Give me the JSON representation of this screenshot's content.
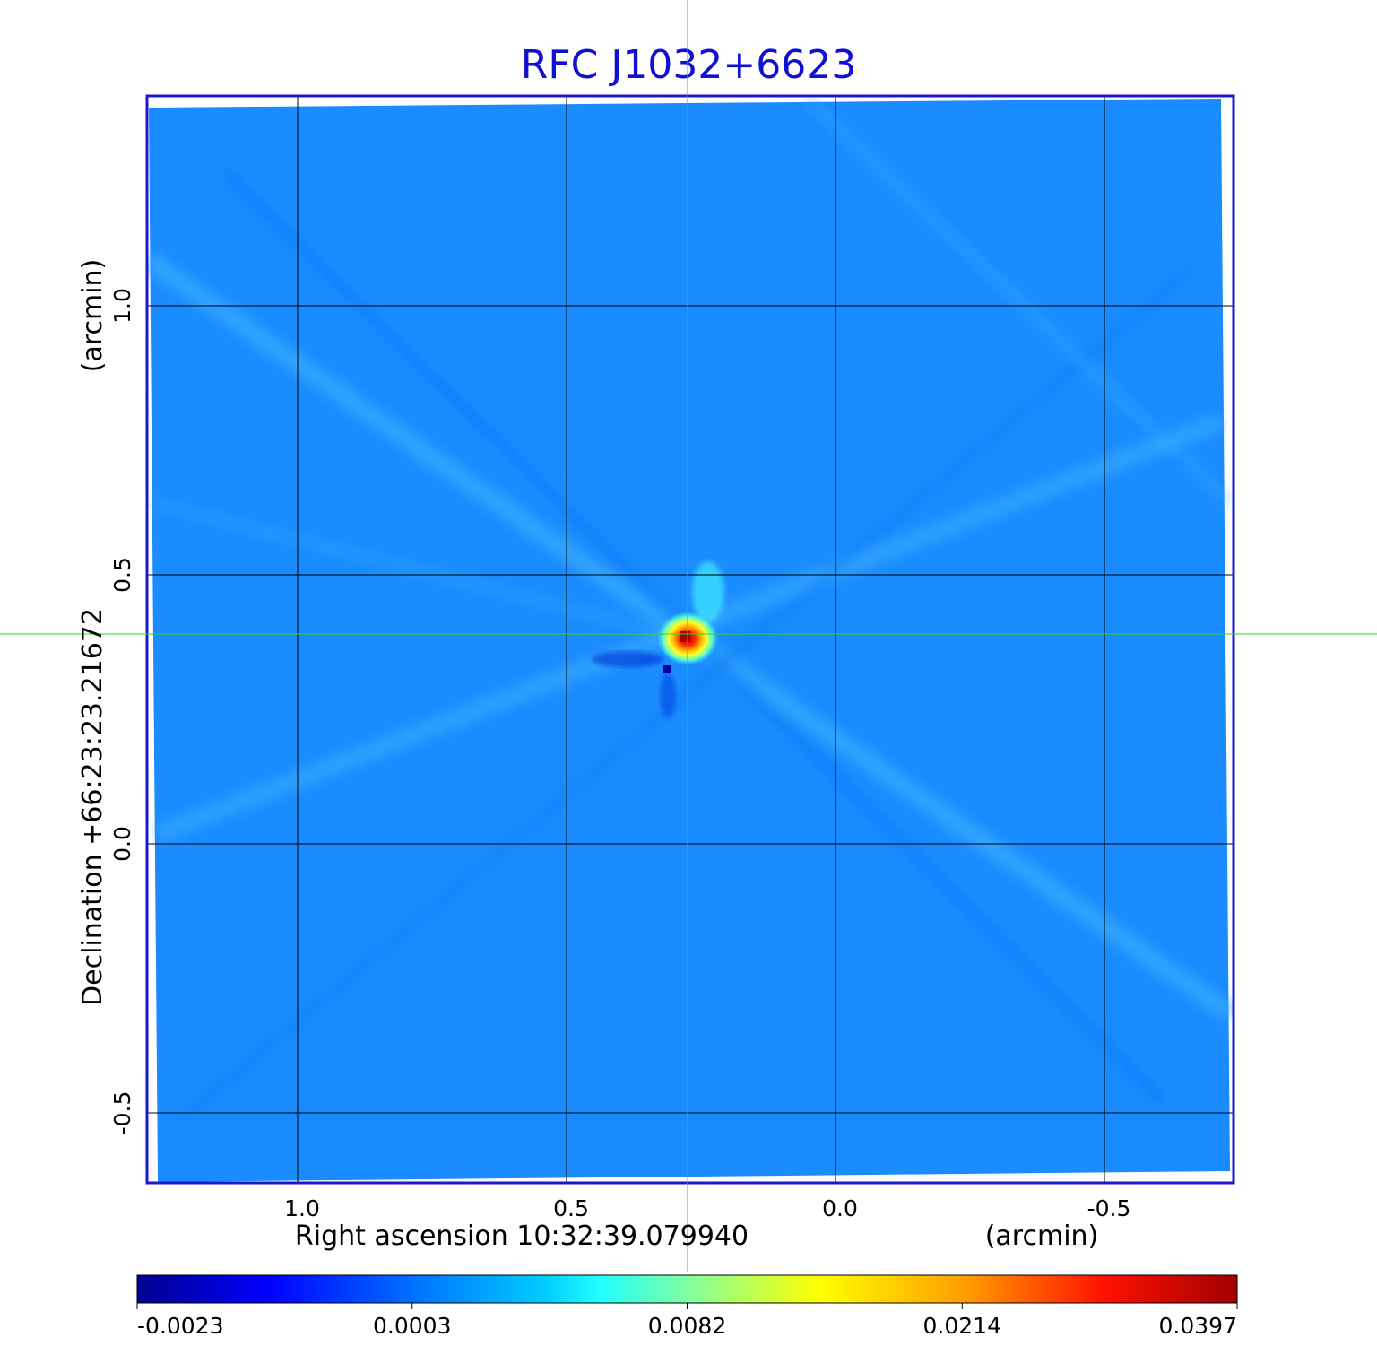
{
  "chart_data": {
    "type": "heatmap",
    "title": "RFC J1032+6623",
    "xlabel": "Right ascension  10:32:39.079940",
    "xunit": "(arcmin)",
    "ylabel": "Declination  +66:23:23.21672",
    "yunit": "(arcmin)",
    "xlim": [
      1.28,
      -0.74
    ],
    "ylim": [
      -0.63,
      1.39
    ],
    "x_ticks": [
      {
        "value": 1.0,
        "label": "1.0"
      },
      {
        "value": 0.5,
        "label": "0.5"
      },
      {
        "value": 0.0,
        "label": "0.0"
      },
      {
        "value": -0.5,
        "label": "-0.5"
      }
    ],
    "y_ticks": [
      {
        "value": 1.0,
        "label": "1.0"
      },
      {
        "value": 0.5,
        "label": "0.5"
      },
      {
        "value": 0.0,
        "label": "0.0"
      },
      {
        "value": -0.5,
        "label": "-0.5"
      }
    ],
    "grid": true,
    "crosshair": {
      "x": 0.275,
      "y": 0.39
    },
    "peak": {
      "x": 0.28,
      "y": 0.39,
      "value": 0.0397
    },
    "colormap": "jet",
    "colorbar": {
      "location": "bottom",
      "tick_labels": [
        "-0.0023",
        "0.0003",
        "0.0082",
        "0.0214",
        "0.0397"
      ]
    },
    "colors": {
      "title": "#1010d0",
      "frame": "#1a1acc",
      "grid": "#000000",
      "crosshair": "#22dd22",
      "background_field": "#1a8cff"
    }
  }
}
